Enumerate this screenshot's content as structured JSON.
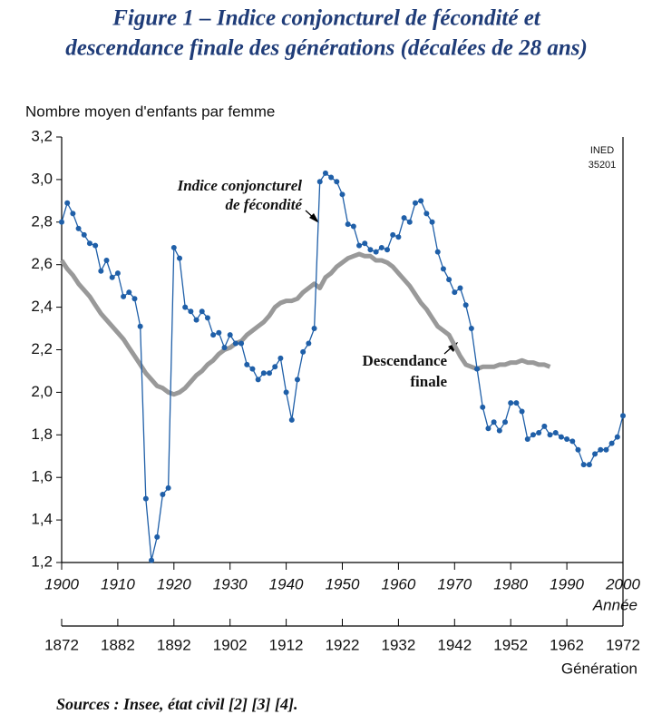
{
  "chart_data": {
    "type": "line",
    "title": [
      "Figure 1 – Indice conjoncturel de fécondité et",
      "descendance finale des générations (décalées de 28 ans)"
    ],
    "y_label": "Nombre moyen d'enfants par femme",
    "x_label": "Année",
    "x2_label": "Génération",
    "source": "Sources : Insee, état civil [2] [3] [4].",
    "annotations": [
      {
        "lines": [
          "Indice conjoncturel",
          "de fécondité"
        ]
      },
      {
        "lines": [
          "Descendance",
          "finale"
        ]
      },
      {
        "lines": [
          "INED",
          "35201"
        ]
      }
    ],
    "xlim": [
      1900,
      2000
    ],
    "xticks": [
      1900,
      1910,
      1920,
      1930,
      1940,
      1950,
      1960,
      1970,
      1980,
      1990,
      2000
    ],
    "x2lim": [
      1872,
      1972
    ],
    "x2ticks": [
      1872,
      1882,
      1892,
      1902,
      1912,
      1922,
      1932,
      1942,
      1952,
      1962,
      1972
    ],
    "ylim": [
      1.2,
      3.2
    ],
    "yticks": [
      {
        "value": 1.2,
        "label": "1,2"
      },
      {
        "value": 1.4,
        "label": "1,4"
      },
      {
        "value": 1.6,
        "label": "1,6"
      },
      {
        "value": 1.8,
        "label": "1,8"
      },
      {
        "value": 2.0,
        "label": "2,0"
      },
      {
        "value": 2.2,
        "label": "2,2"
      },
      {
        "value": 2.4,
        "label": "2,4"
      },
      {
        "value": 2.6,
        "label": "2,6"
      },
      {
        "value": 2.8,
        "label": "2,8"
      },
      {
        "value": 3.0,
        "label": "3,0"
      },
      {
        "value": 3.2,
        "label": "3,2"
      }
    ],
    "series": [
      {
        "name": "Indice conjoncturel de fécondité",
        "color": "#1f5fa8",
        "marker": true,
        "x": [
          1900,
          1901,
          1902,
          1903,
          1904,
          1905,
          1906,
          1907,
          1908,
          1909,
          1910,
          1911,
          1912,
          1913,
          1914,
          1915,
          1916,
          1917,
          1918,
          1919,
          1920,
          1921,
          1922,
          1923,
          1924,
          1925,
          1926,
          1927,
          1928,
          1929,
          1930,
          1931,
          1932,
          1933,
          1934,
          1935,
          1936,
          1937,
          1938,
          1939,
          1940,
          1941,
          1942,
          1943,
          1944,
          1945,
          1946,
          1947,
          1948,
          1949,
          1950,
          1951,
          1952,
          1953,
          1954,
          1955,
          1956,
          1957,
          1958,
          1959,
          1960,
          1961,
          1962,
          1963,
          1964,
          1965,
          1966,
          1967,
          1968,
          1969,
          1970,
          1971,
          1972,
          1973,
          1974,
          1975,
          1976,
          1977,
          1978,
          1979,
          1980,
          1981,
          1982,
          1983,
          1984,
          1985,
          1986,
          1987,
          1988,
          1989,
          1990,
          1991,
          1992,
          1993,
          1994,
          1995,
          1996,
          1997,
          1998,
          1999,
          2000
        ],
        "values": [
          2.8,
          2.89,
          2.84,
          2.77,
          2.74,
          2.7,
          2.69,
          2.57,
          2.62,
          2.54,
          2.56,
          2.45,
          2.47,
          2.44,
          2.31,
          1.5,
          1.21,
          1.32,
          1.52,
          1.55,
          2.68,
          2.63,
          2.4,
          2.38,
          2.34,
          2.38,
          2.35,
          2.27,
          2.28,
          2.21,
          2.27,
          2.23,
          2.23,
          2.13,
          2.11,
          2.06,
          2.09,
          2.09,
          2.12,
          2.16,
          2.0,
          1.87,
          2.06,
          2.19,
          2.23,
          2.3,
          2.99,
          3.03,
          3.01,
          2.99,
          2.93,
          2.79,
          2.78,
          2.69,
          2.7,
          2.67,
          2.66,
          2.68,
          2.67,
          2.74,
          2.73,
          2.82,
          2.8,
          2.89,
          2.9,
          2.84,
          2.8,
          2.66,
          2.58,
          2.53,
          2.47,
          2.49,
          2.41,
          2.3,
          2.11,
          1.93,
          1.83,
          1.86,
          1.82,
          1.86,
          1.95,
          1.95,
          1.91,
          1.78,
          1.8,
          1.81,
          1.84,
          1.8,
          1.81,
          1.79,
          1.78,
          1.77,
          1.73,
          1.66,
          1.66,
          1.71,
          1.73,
          1.73,
          1.76,
          1.79,
          1.89
        ]
      },
      {
        "name": "Descendance finale",
        "color": "#999999",
        "axis": "x2",
        "marker": false,
        "x": [
          1872,
          1873,
          1874,
          1875,
          1876,
          1877,
          1878,
          1879,
          1880,
          1881,
          1882,
          1883,
          1884,
          1885,
          1886,
          1887,
          1888,
          1889,
          1890,
          1891,
          1892,
          1893,
          1894,
          1895,
          1896,
          1897,
          1898,
          1899,
          1900,
          1901,
          1902,
          1903,
          1904,
          1905,
          1906,
          1907,
          1908,
          1909,
          1910,
          1911,
          1912,
          1913,
          1914,
          1915,
          1916,
          1917,
          1918,
          1919,
          1920,
          1921,
          1922,
          1923,
          1924,
          1925,
          1926,
          1927,
          1928,
          1929,
          1930,
          1931,
          1932,
          1933,
          1934,
          1935,
          1936,
          1937,
          1938,
          1939,
          1940,
          1941,
          1942,
          1943,
          1944,
          1945,
          1946,
          1947,
          1948,
          1949,
          1950,
          1951,
          1952,
          1953,
          1954,
          1955,
          1956,
          1957,
          1958,
          1959
        ],
        "values": [
          2.62,
          2.58,
          2.55,
          2.51,
          2.48,
          2.45,
          2.41,
          2.37,
          2.34,
          2.31,
          2.28,
          2.25,
          2.21,
          2.17,
          2.13,
          2.09,
          2.06,
          2.03,
          2.02,
          2.0,
          1.99,
          2.0,
          2.02,
          2.05,
          2.08,
          2.1,
          2.13,
          2.15,
          2.18,
          2.2,
          2.21,
          2.23,
          2.24,
          2.27,
          2.29,
          2.31,
          2.33,
          2.36,
          2.4,
          2.42,
          2.43,
          2.43,
          2.44,
          2.47,
          2.49,
          2.51,
          2.49,
          2.54,
          2.56,
          2.59,
          2.61,
          2.63,
          2.64,
          2.65,
          2.64,
          2.64,
          2.62,
          2.62,
          2.61,
          2.59,
          2.56,
          2.53,
          2.5,
          2.46,
          2.42,
          2.39,
          2.35,
          2.31,
          2.29,
          2.27,
          2.22,
          2.17,
          2.13,
          2.12,
          2.11,
          2.12,
          2.12,
          2.12,
          2.13,
          2.13,
          2.14,
          2.14,
          2.15,
          2.14,
          2.14,
          2.13,
          2.13,
          2.12
        ]
      }
    ]
  }
}
